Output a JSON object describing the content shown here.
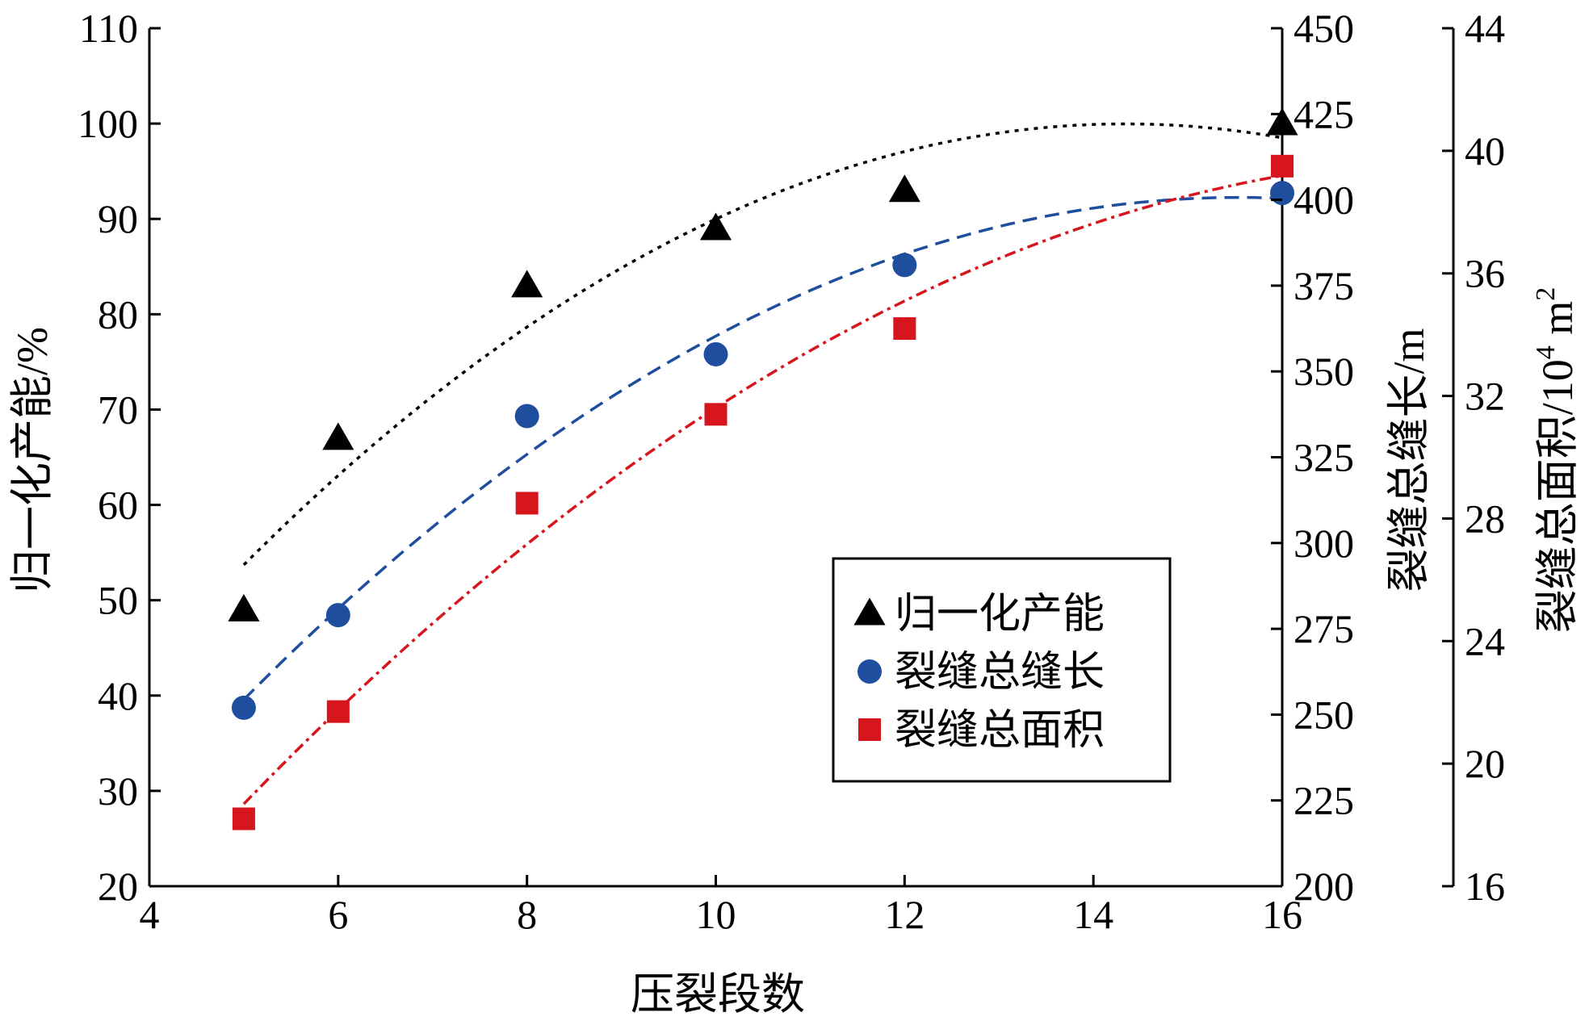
{
  "chart_data": {
    "type": "scatter",
    "xlabel": "压裂段数",
    "x_ticks": [
      "4",
      "6",
      "8",
      "10",
      "12",
      "14",
      "16"
    ],
    "xlim": [
      4,
      16
    ],
    "y_axes": [
      {
        "label": "归一化产能/%",
        "ylim": [
          20,
          110
        ],
        "ticks": [
          "20",
          "30",
          "40",
          "50",
          "60",
          "70",
          "80",
          "90",
          "100",
          "110"
        ]
      },
      {
        "label": "裂缝总缝长/m",
        "ylim": [
          200,
          450
        ],
        "ticks": [
          "200",
          "225",
          "250",
          "275",
          "300",
          "325",
          "350",
          "375",
          "400",
          "425",
          "450"
        ]
      },
      {
        "label_main": "裂缝总面积/10",
        "label_sup": "4",
        "label_unit": " m",
        "label_sup2": "2",
        "ylim": [
          16,
          44
        ],
        "ticks": [
          "16",
          "20",
          "24",
          "28",
          "32",
          "36",
          "40",
          "44"
        ]
      }
    ],
    "series": [
      {
        "name": "归一化产能",
        "axis": 0,
        "marker": "triangle",
        "color": "#000000",
        "x": [
          5,
          6,
          8,
          10,
          12,
          16
        ],
        "y": [
          49,
          67,
          83,
          89,
          93,
          100
        ],
        "trend": "quadratic",
        "trend_style": "dotted"
      },
      {
        "name": "裂缝总缝长",
        "axis": 1,
        "marker": "circle",
        "color": "#1f4e9e",
        "x": [
          5,
          6,
          8,
          10,
          12,
          16
        ],
        "y": [
          252,
          279,
          337,
          355,
          381,
          402
        ],
        "trend": "quadratic",
        "trend_style": "dashed"
      },
      {
        "name": "裂缝总面积",
        "axis": 2,
        "marker": "square",
        "color": "#d7151c",
        "x": [
          5,
          6,
          8,
          10,
          12,
          16
        ],
        "y": [
          18.2,
          21.7,
          28.5,
          31.4,
          34.2,
          39.5
        ],
        "trend": "quadratic",
        "trend_style": "dashdot"
      }
    ],
    "legend": "lower-right"
  }
}
